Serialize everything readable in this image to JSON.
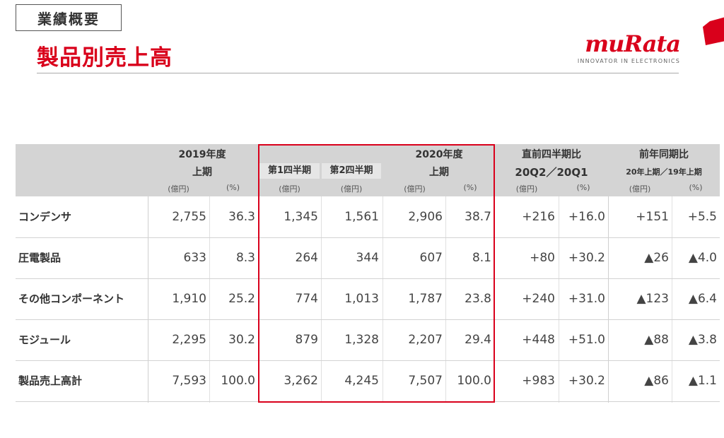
{
  "header": {
    "section_tag": "業績概要",
    "title": "製品別売上高",
    "logo_word": "muRata",
    "logo_tagline": "INNOVATOR IN ELECTRONICS",
    "brand_color": "#d9001b"
  },
  "table": {
    "col_groups": {
      "fy2019": "2019年度",
      "fy2019_sub": "上期",
      "fy2020": "2020年度",
      "fy2020_sub": "上期",
      "q1": "第1四半期",
      "q2": "第2四半期",
      "qoq": "直前四半期比",
      "qoq_sub": "20Q2／20Q1",
      "yoy": "前年同期比",
      "yoy_sub": "20年上期／19年上期"
    },
    "units": {
      "oku": "(億円)",
      "pct": "(%)"
    },
    "rows": [
      {
        "label": "コンデンサ",
        "v": [
          "2,755",
          "36.3",
          "1,345",
          "1,561",
          "2,906",
          "38.7",
          "+216",
          "+16.0",
          "+151",
          "+5.5"
        ]
      },
      {
        "label": "圧電製品",
        "v": [
          "633",
          "8.3",
          "264",
          "344",
          "607",
          "8.1",
          "+80",
          "+30.2",
          "▲26",
          "▲4.0"
        ]
      },
      {
        "label": "その他コンポーネント",
        "v": [
          "1,910",
          "25.2",
          "774",
          "1,013",
          "1,787",
          "23.8",
          "+240",
          "+31.0",
          "▲123",
          "▲6.4"
        ]
      },
      {
        "label": "モジュール",
        "v": [
          "2,295",
          "30.2",
          "879",
          "1,328",
          "2,207",
          "29.4",
          "+448",
          "+51.0",
          "▲88",
          "▲3.8"
        ]
      },
      {
        "label": "製品売上高計",
        "v": [
          "7,593",
          "100.0",
          "3,262",
          "4,245",
          "7,507",
          "100.0",
          "+983",
          "+30.2",
          "▲86",
          "▲1.1"
        ]
      }
    ]
  }
}
